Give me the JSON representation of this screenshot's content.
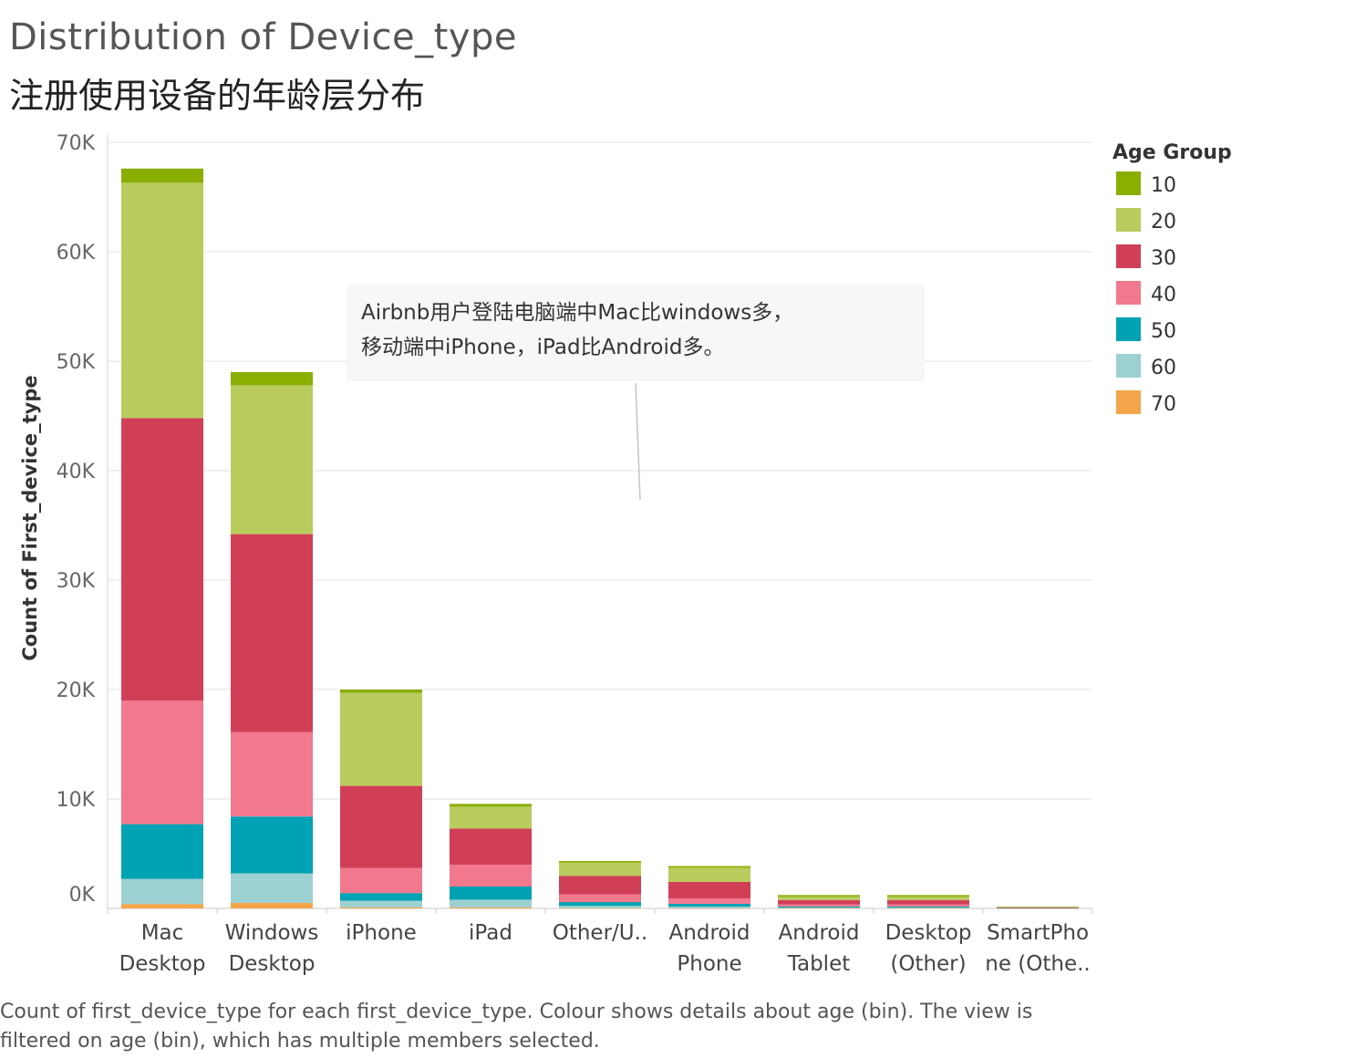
{
  "title": "Distribution of Device_type",
  "subtitle": "注册使用设备的年龄层分布",
  "footer": {
    "line1": "Count of first_device_type for each first_device_type.  Colour shows details about age (bin). The view is",
    "line2": "filtered on age (bin), which has multiple members selected."
  },
  "annotation": {
    "line1": "Airbnb用户登陆电脑端中Mac比windows多，",
    "line2": "移动端中iPhone，iPad比Android多。"
  },
  "chart_data": {
    "type": "bar",
    "stacked": true,
    "categories": [
      [
        "Mac",
        "Desktop"
      ],
      [
        "Windows",
        "Desktop"
      ],
      [
        "iPhone"
      ],
      [
        "iPad"
      ],
      [
        "Other/U.."
      ],
      [
        "Android",
        "Phone"
      ],
      [
        "Android",
        "Tablet"
      ],
      [
        "Desktop",
        "(Other)"
      ],
      [
        "SmartPho",
        "ne (Othe.."
      ]
    ],
    "ylabel": "Count of First_device_type",
    "ylim": [
      0,
      70000
    ],
    "yticks": [
      0,
      10000,
      20000,
      30000,
      40000,
      50000,
      60000,
      70000
    ],
    "ytick_labels": [
      "0K",
      "10K",
      "20K",
      "30K",
      "40K",
      "50K",
      "60K",
      "70K"
    ],
    "grid": true,
    "legend": {
      "title": "Age Group",
      "placement": "right"
    },
    "series": [
      {
        "name": "70",
        "color": "#f3a649",
        "values": [
          400,
          500,
          100,
          100,
          30,
          20,
          20,
          20,
          5
        ]
      },
      {
        "name": "60",
        "color": "#9dd0d1",
        "values": [
          2300,
          2700,
          600,
          700,
          200,
          150,
          60,
          60,
          10
        ]
      },
      {
        "name": "50",
        "color": "#00a2b3",
        "values": [
          5000,
          5200,
          700,
          1200,
          350,
          250,
          90,
          90,
          15
        ]
      },
      {
        "name": "40",
        "color": "#f1788d",
        "values": [
          11300,
          7700,
          2300,
          2000,
          700,
          500,
          190,
          190,
          25
        ]
      },
      {
        "name": "30",
        "color": "#d13f57",
        "values": [
          25800,
          18100,
          7500,
          3300,
          1700,
          1500,
          410,
          410,
          55
        ]
      },
      {
        "name": "20",
        "color": "#b9cc5e",
        "values": [
          21500,
          13600,
          8500,
          2000,
          1200,
          1300,
          300,
          300,
          30
        ]
      },
      {
        "name": "10",
        "color": "#8aae02",
        "values": [
          1300,
          1200,
          300,
          250,
          150,
          150,
          150,
          150,
          20
        ]
      }
    ]
  }
}
